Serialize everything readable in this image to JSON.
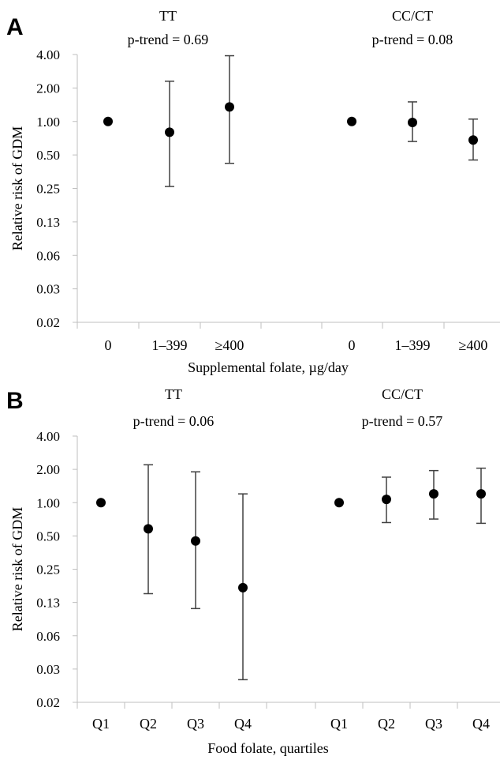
{
  "chart_data": [
    {
      "panel": "A",
      "type": "scatter",
      "ylabel": "Relative risk of GDM",
      "xlabel": "Supplemental folate, µg/day",
      "y_scale": "log2",
      "yticks": [
        "4.00",
        "2.00",
        "1.00",
        "0.50",
        "0.25",
        "0.13",
        "0.06",
        "0.03",
        "0.02"
      ],
      "ylim": [
        0.0156,
        4.0
      ],
      "grid": false,
      "groups": [
        {
          "name": "TT",
          "subtitle": "p-trend = 0.69",
          "categories": [
            "0",
            "1–399",
            "≥400"
          ],
          "values": [
            1.0,
            0.8,
            1.35
          ],
          "ci_low": [
            1.0,
            0.26,
            0.42
          ],
          "ci_high": [
            1.0,
            2.3,
            3.9
          ]
        },
        {
          "name": "CC/CT",
          "subtitle": "p-trend = 0.08",
          "categories": [
            "0",
            "1–399",
            "≥400"
          ],
          "values": [
            1.0,
            0.98,
            0.68
          ],
          "ci_low": [
            1.0,
            0.66,
            0.45
          ],
          "ci_high": [
            1.0,
            1.5,
            1.05
          ]
        }
      ]
    },
    {
      "panel": "B",
      "type": "scatter",
      "ylabel": "Relative risk of GDM",
      "xlabel": "Food folate, quartiles",
      "y_scale": "log2",
      "yticks": [
        "4.00",
        "2.00",
        "1.00",
        "0.50",
        "0.25",
        "0.13",
        "0.06",
        "0.03",
        "0.02"
      ],
      "ylim": [
        0.0156,
        4.0
      ],
      "grid": false,
      "groups": [
        {
          "name": "TT",
          "subtitle": "p-trend = 0.06",
          "categories": [
            "Q1",
            "Q2",
            "Q3",
            "Q4"
          ],
          "values": [
            1.0,
            0.58,
            0.45,
            0.17
          ],
          "ci_low": [
            1.0,
            0.15,
            0.11,
            0.025
          ],
          "ci_high": [
            1.0,
            2.2,
            1.9,
            1.2
          ]
        },
        {
          "name": "CC/CT",
          "subtitle": "p-trend = 0.57",
          "categories": [
            "Q1",
            "Q2",
            "Q3",
            "Q4"
          ],
          "values": [
            1.0,
            1.07,
            1.2,
            1.2
          ],
          "ci_low": [
            1.0,
            0.66,
            0.71,
            0.65
          ],
          "ci_high": [
            1.0,
            1.7,
            1.95,
            2.05
          ]
        }
      ]
    }
  ]
}
